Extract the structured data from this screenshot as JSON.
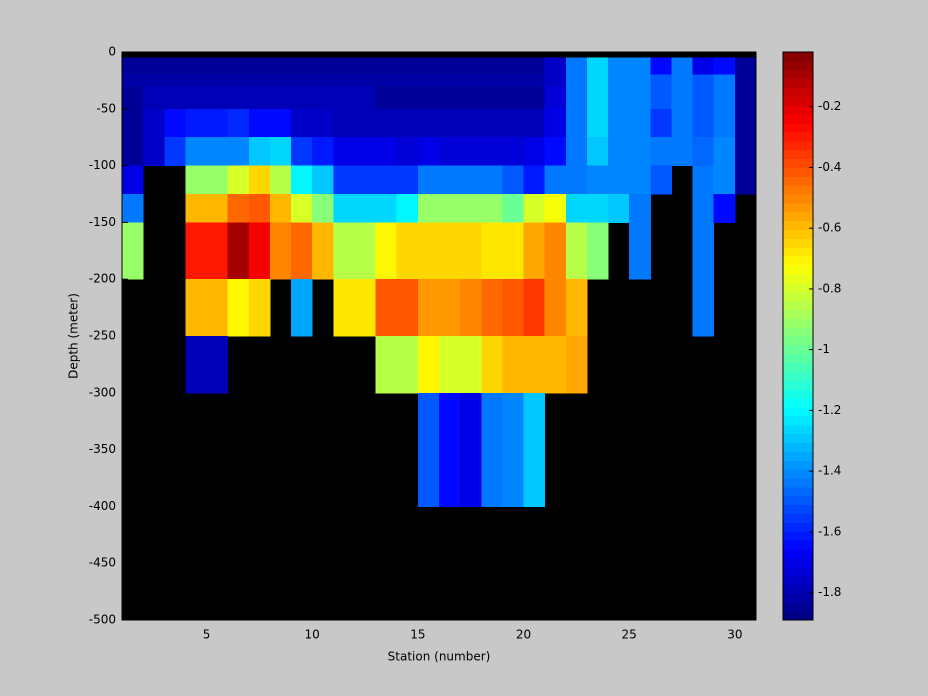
{
  "chart_data": {
    "type": "heatmap",
    "xlabel": "Station (number)",
    "ylabel": "Depth (meter)",
    "colormap": "jet",
    "nan_color": "#000000",
    "x_edges": [
      1,
      2,
      3,
      4,
      5,
      6,
      7,
      8,
      9,
      10,
      11,
      12,
      13,
      14,
      15,
      16,
      17,
      18,
      19,
      20,
      21,
      22,
      23,
      24,
      25,
      26,
      27,
      28,
      29,
      30,
      31
    ],
    "y_edges": [
      0,
      -5,
      -20,
      -30,
      -50,
      -75,
      -100,
      -125,
      -150,
      -200,
      -250,
      -300,
      -400,
      -500
    ],
    "xlim": [
      1,
      31
    ],
    "xticks": [
      5,
      10,
      15,
      20,
      25,
      30
    ],
    "ylim": [
      -500,
      0
    ],
    "yticks": [
      0,
      -50,
      -100,
      -150,
      -200,
      -250,
      -300,
      -350,
      -400,
      -450,
      -500
    ],
    "clim": [
      -1.89,
      -0.02
    ],
    "cticks": [
      -1.8,
      -1.6,
      -1.4,
      -1.2,
      -1,
      -0.8,
      -0.6,
      -0.4,
      -0.2
    ],
    "z": [
      [
        null,
        null,
        null,
        null,
        null,
        null,
        null,
        null,
        null,
        null,
        null,
        null,
        null,
        null,
        null,
        null,
        null,
        null,
        null,
        null,
        null,
        null,
        null,
        null,
        null,
        null,
        null,
        null,
        null,
        null
      ],
      [
        -1.85,
        -1.85,
        -1.85,
        -1.85,
        -1.85,
        -1.85,
        -1.85,
        -1.85,
        -1.85,
        -1.85,
        -1.85,
        -1.85,
        -1.85,
        -1.85,
        -1.85,
        -1.85,
        -1.85,
        -1.85,
        -1.85,
        -1.85,
        -1.75,
        -1.45,
        -1.25,
        -1.4,
        -1.4,
        -1.65,
        -1.45,
        -1.7,
        -1.65,
        -1.85
      ],
      [
        -1.82,
        -1.82,
        -1.82,
        -1.82,
        -1.82,
        -1.82,
        -1.82,
        -1.82,
        -1.82,
        -1.82,
        -1.82,
        -1.82,
        -1.82,
        -1.82,
        -1.82,
        -1.82,
        -1.82,
        -1.82,
        -1.82,
        -1.82,
        -1.75,
        -1.45,
        -1.25,
        -1.4,
        -1.4,
        -1.5,
        -1.45,
        -1.5,
        -1.45,
        -1.85
      ],
      [
        -1.85,
        -1.8,
        -1.8,
        -1.8,
        -1.8,
        -1.8,
        -1.8,
        -1.8,
        -1.8,
        -1.8,
        -1.8,
        -1.8,
        -1.85,
        -1.85,
        -1.85,
        -1.85,
        -1.85,
        -1.85,
        -1.85,
        -1.85,
        -1.72,
        -1.45,
        -1.25,
        -1.4,
        -1.4,
        -1.5,
        -1.45,
        -1.5,
        -1.45,
        -1.85
      ],
      [
        -1.85,
        -1.75,
        -1.65,
        -1.6,
        -1.6,
        -1.58,
        -1.65,
        -1.65,
        -1.75,
        -1.75,
        -1.78,
        -1.78,
        -1.78,
        -1.8,
        -1.8,
        -1.8,
        -1.8,
        -1.8,
        -1.8,
        -1.8,
        -1.7,
        -1.45,
        -1.25,
        -1.4,
        -1.4,
        -1.55,
        -1.45,
        -1.5,
        -1.45,
        -1.85
      ],
      [
        -1.85,
        -1.75,
        -1.55,
        -1.4,
        -1.4,
        -1.4,
        -1.3,
        -1.25,
        -1.55,
        -1.6,
        -1.7,
        -1.7,
        -1.7,
        -1.72,
        -1.7,
        -1.72,
        -1.72,
        -1.72,
        -1.72,
        -1.7,
        -1.65,
        -1.45,
        -1.3,
        -1.4,
        -1.4,
        -1.45,
        -1.45,
        -1.48,
        -1.4,
        -1.85
      ],
      [
        -1.7,
        null,
        null,
        -0.9,
        -0.9,
        -0.8,
        -0.65,
        -0.85,
        -1.2,
        -1.3,
        -1.55,
        -1.55,
        -1.55,
        -1.55,
        -1.45,
        -1.45,
        -1.45,
        -1.45,
        -1.5,
        -1.6,
        -1.45,
        -1.45,
        -1.4,
        -1.4,
        -1.4,
        -1.5,
        null,
        -1.45,
        -1.4,
        -1.85
      ],
      [
        -1.45,
        null,
        null,
        -0.6,
        -0.6,
        -0.45,
        -0.4,
        -0.6,
        -0.8,
        -0.95,
        -1.25,
        -1.25,
        -1.25,
        -1.2,
        -0.9,
        -0.9,
        -0.9,
        -0.9,
        -1.0,
        -0.8,
        -0.75,
        -1.25,
        -1.25,
        -1.3,
        -1.45,
        null,
        null,
        -1.45,
        -1.65,
        null
      ],
      [
        -0.9,
        null,
        null,
        -0.3,
        -0.3,
        -0.1,
        -0.25,
        -0.5,
        -0.45,
        -0.6,
        -0.85,
        -0.85,
        -0.7,
        -0.65,
        -0.65,
        -0.65,
        -0.65,
        -0.68,
        -0.68,
        -0.55,
        -0.5,
        -0.85,
        -0.95,
        null,
        -1.45,
        null,
        null,
        -1.45,
        null,
        null
      ],
      [
        null,
        null,
        null,
        -0.6,
        -0.6,
        -0.7,
        -0.65,
        null,
        -1.35,
        null,
        -0.68,
        -0.68,
        -0.4,
        -0.4,
        -0.52,
        -0.52,
        -0.5,
        -0.45,
        -0.42,
        -0.35,
        -0.5,
        -0.6,
        null,
        null,
        null,
        null,
        null,
        -1.45,
        null,
        null
      ],
      [
        null,
        null,
        null,
        -1.8,
        -1.8,
        null,
        null,
        null,
        null,
        null,
        null,
        null,
        -0.85,
        -0.85,
        -0.7,
        -0.8,
        -0.8,
        -0.65,
        -0.58,
        -0.58,
        -0.58,
        -0.55,
        null,
        null,
        null,
        null,
        null,
        null,
        null,
        null
      ],
      [
        null,
        null,
        null,
        null,
        null,
        null,
        null,
        null,
        null,
        null,
        null,
        null,
        null,
        null,
        -1.5,
        -1.65,
        -1.7,
        -1.45,
        -1.4,
        -1.3,
        null,
        null,
        null,
        null,
        null,
        null,
        null,
        null,
        null,
        null
      ],
      [
        null,
        null,
        null,
        null,
        null,
        null,
        null,
        null,
        null,
        null,
        null,
        null,
        null,
        null,
        null,
        null,
        null,
        null,
        null,
        null,
        null,
        null,
        null,
        null,
        null,
        null,
        null,
        null,
        null,
        null
      ]
    ]
  }
}
